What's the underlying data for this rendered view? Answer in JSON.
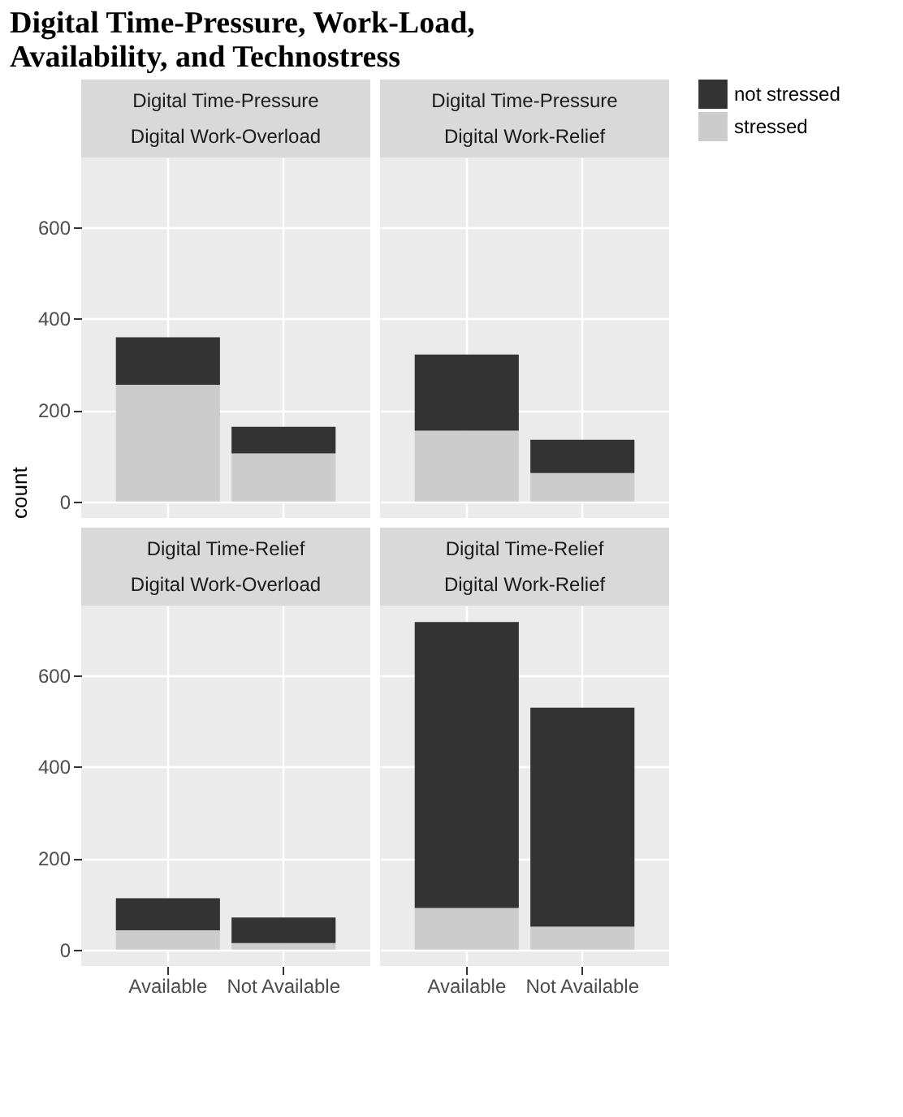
{
  "chart_data": [
    {
      "type": "other",
      "title": "Digital Time-Pressure, Work-Load, Availability, and Technostress"
    },
    {
      "type": "bar",
      "title": "Digital Time-Pressure",
      "subtitle": "Digital Work-Overload",
      "ylabel": "count",
      "categories": [
        "Available",
        "Not Available"
      ],
      "stacked": true,
      "ylim": [
        -36,
        752
      ],
      "yticks": [
        0,
        200,
        400,
        600
      ],
      "grid": true,
      "legend": "right",
      "tick_labels": "y",
      "series": [
        {
          "name": "stressed",
          "color": "#cccccc",
          "values": [
            255,
            105
          ]
        },
        {
          "name": "not stressed",
          "color": "#333333",
          "values": [
            104,
            58
          ]
        }
      ]
    },
    {
      "type": "bar",
      "title": "Digital Time-Pressure",
      "subtitle": "Digital Work-Relief",
      "categories": [
        "Available",
        "Not Available"
      ],
      "stacked": true,
      "ylim": [
        -36,
        752
      ],
      "yticks": [
        0,
        200,
        400,
        600
      ],
      "grid": true,
      "legend": "right",
      "tick_labels": false,
      "series": [
        {
          "name": "stressed",
          "color": "#cccccc",
          "values": [
            155,
            62
          ]
        },
        {
          "name": "not stressed",
          "color": "#333333",
          "values": [
            166,
            73
          ]
        }
      ]
    },
    {
      "type": "bar",
      "title": "Digital Time-Relief",
      "subtitle": "Digital Work-Overload",
      "categories": [
        "Available",
        "Not Available"
      ],
      "stacked": true,
      "ylim": [
        -36,
        752
      ],
      "yticks": [
        0,
        200,
        400,
        600
      ],
      "grid": true,
      "legend": "right",
      "series": [
        {
          "name": "stressed",
          "color": "#cccccc",
          "values": [
            42,
            14
          ]
        },
        {
          "name": "not stressed",
          "color": "#333333",
          "values": [
            70,
            56
          ]
        }
      ]
    },
    {
      "type": "bar",
      "title": "Digital Time-Relief",
      "subtitle": "Digital Work-Relief",
      "categories": [
        "Available",
        "Not Available"
      ],
      "stacked": true,
      "ylim": [
        -36,
        752
      ],
      "yticks": [
        0,
        200,
        400,
        600
      ],
      "grid": true,
      "legend": "right",
      "tick_labels": "x",
      "series": [
        {
          "name": "stressed",
          "color": "#cccccc",
          "values": [
            91,
            50
          ]
        },
        {
          "name": "not stressed",
          "color": "#333333",
          "values": [
            625,
            479
          ]
        }
      ]
    }
  ]
}
